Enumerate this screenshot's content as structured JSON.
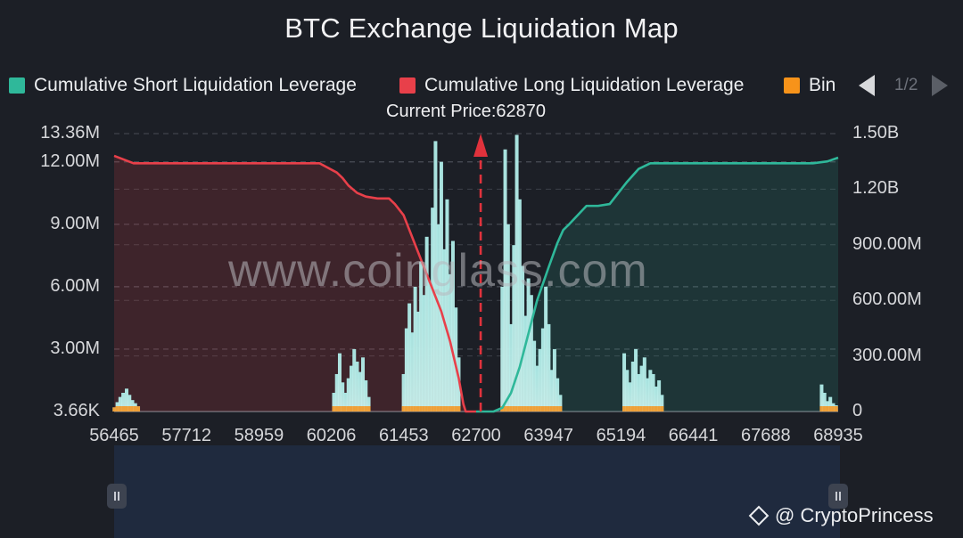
{
  "title": "BTC Exchange Liquidation Map",
  "legend": {
    "items": [
      {
        "label": "Cumulative Short Liquidation Leverage",
        "color": "#2fb89a"
      },
      {
        "label": "Cumulative Long Liquidation Leverage",
        "color": "#e8404a"
      },
      {
        "label": "Bin",
        "color": "#f7931a"
      }
    ],
    "page": "1/2"
  },
  "current_price_label": "Current Price:62870",
  "watermark": "www.coinglass.com",
  "brand": "@ CryptoPrincess",
  "colors": {
    "background": "#1c1f26",
    "short": "#2fb89a",
    "long": "#e8404a",
    "bin_top": "#f7931a",
    "bar": "#b5ece8"
  },
  "chart_data": {
    "type": "bar",
    "title": "BTC Exchange Liquidation Map",
    "current_price": 62870,
    "x_range": [
      56465,
      68935
    ],
    "x_ticks": [
      "56465",
      "57712",
      "58959",
      "60206",
      "61453",
      "62700",
      "63947",
      "65194",
      "66441",
      "67688",
      "68935"
    ],
    "y_left_ticks": [
      "3.66K",
      "3.00M",
      "6.00M",
      "9.00M",
      "12.00M",
      "13.36M"
    ],
    "y_left_values": [
      0,
      3000000,
      6000000,
      9000000,
      12000000,
      13360000
    ],
    "y_right_ticks": [
      "0",
      "300.00M",
      "600.00M",
      "900.00M",
      "1.20B",
      "1.50B"
    ],
    "y_right_values": [
      0,
      300000000,
      600000000,
      900000000,
      1200000000,
      1500000000
    ],
    "series": [
      {
        "name": "Cumulative Long Liquidation Leverage",
        "axis": "right",
        "x": [
          56465,
          56550,
          56800,
          57000,
          58000,
          59000,
          59500,
          60000,
          60300,
          60400,
          60500,
          60650,
          60800,
          61000,
          61200,
          61300,
          61450,
          61550,
          61700,
          61900,
          62100,
          62250,
          62400,
          62480,
          62520,
          62700
        ],
        "values": [
          1380000000,
          1370000000,
          1340000000,
          1340000000,
          1340000000,
          1340000000,
          1340000000,
          1340000000,
          1290000000,
          1260000000,
          1220000000,
          1180000000,
          1160000000,
          1150000000,
          1150000000,
          1120000000,
          1060000000,
          980000000,
          860000000,
          700000000,
          540000000,
          380000000,
          180000000,
          40000000,
          0,
          0
        ]
      },
      {
        "name": "Cumulative Short Liquidation Leverage",
        "axis": "right",
        "x": [
          62700,
          62850,
          63000,
          63150,
          63300,
          63450,
          63600,
          63750,
          63950,
          64100,
          64200,
          64300,
          64600,
          64800,
          65000,
          65100,
          65300,
          65500,
          65700,
          66000,
          67000,
          68000,
          68500,
          68750,
          68935
        ],
        "values": [
          0,
          0,
          0,
          20000000,
          100000000,
          240000000,
          420000000,
          600000000,
          780000000,
          910000000,
          980000000,
          1010000000,
          1110000000,
          1110000000,
          1120000000,
          1160000000,
          1240000000,
          1310000000,
          1340000000,
          1340000000,
          1340000000,
          1340000000,
          1340000000,
          1350000000,
          1370000000
        ]
      }
    ],
    "bins": {
      "name": "Bin",
      "axis": "left",
      "x": [
        56470,
        56520,
        56570,
        56620,
        56680,
        56730,
        56780,
        56830,
        56880,
        60250,
        60300,
        60350,
        60400,
        60450,
        60500,
        60550,
        60600,
        60650,
        60700,
        60750,
        60800,
        60850,
        61450,
        61500,
        61550,
        61600,
        61650,
        61700,
        61750,
        61800,
        61850,
        61900,
        61950,
        62000,
        62050,
        62100,
        62150,
        62200,
        62250,
        62300,
        62350,
        62400,
        63150,
        63200,
        63250,
        63300,
        63350,
        63400,
        63450,
        63500,
        63550,
        63600,
        63650,
        63700,
        63750,
        63800,
        63850,
        63900,
        63950,
        64000,
        64050,
        64100,
        64150,
        65250,
        65300,
        65350,
        65400,
        65450,
        65500,
        65550,
        65600,
        65650,
        65700,
        65750,
        65800,
        65850,
        65900,
        68650,
        68700,
        68750,
        68800,
        68850,
        68900
      ],
      "values": [
        200000,
        450000,
        700000,
        900000,
        1100000,
        800000,
        550000,
        400000,
        250000,
        900000,
        1800000,
        2800000,
        1400000,
        900000,
        1600000,
        2200000,
        3000000,
        2400000,
        1900000,
        2600000,
        1500000,
        700000,
        1800000,
        4000000,
        5200000,
        3800000,
        6000000,
        4800000,
        7200000,
        5600000,
        8400000,
        6200000,
        9800000,
        13000000,
        9000000,
        12000000,
        7800000,
        10200000,
        6600000,
        8200000,
        5000000,
        2600000,
        6000000,
        12600000,
        9000000,
        4200000,
        8000000,
        13300000,
        10200000,
        7000000,
        4600000,
        6400000,
        5600000,
        3400000,
        2200000,
        3000000,
        4000000,
        6000000,
        4200000,
        2000000,
        3000000,
        1600000,
        800000,
        2800000,
        2000000,
        1400000,
        2400000,
        3000000,
        1800000,
        2200000,
        2600000,
        1600000,
        2000000,
        1800000,
        1200000,
        1500000,
        800000,
        1300000,
        900000,
        500000,
        700000,
        400000,
        300000
      ]
    },
    "xlabel": "",
    "ylabel": "",
    "grid": true,
    "legend_position": "top"
  }
}
